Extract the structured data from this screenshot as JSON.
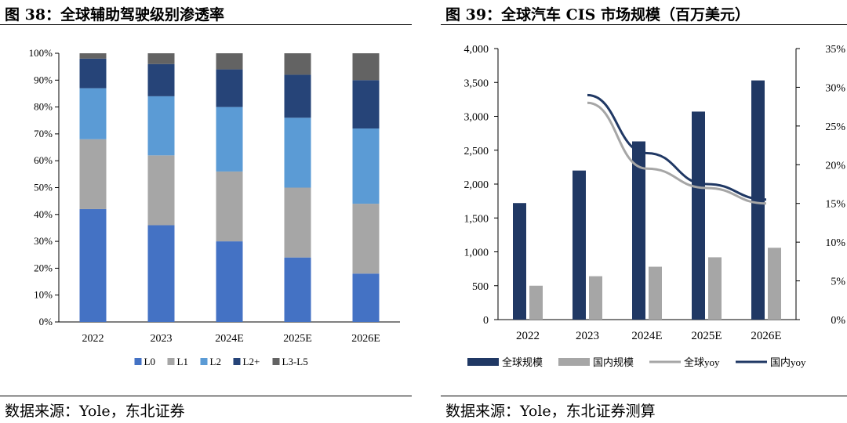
{
  "left": {
    "title": "图 38：全球辅助驾驶级别渗透率",
    "source": "数据来源：Yole，东北证券",
    "chart_data": {
      "type": "bar",
      "stacked": true,
      "categories": [
        "2022",
        "2023",
        "2024E",
        "2025E",
        "2026E"
      ],
      "series": [
        {
          "name": "L0",
          "values": [
            42,
            36,
            30,
            24,
            18
          ],
          "color": "#4472c4"
        },
        {
          "name": "L1",
          "values": [
            26,
            26,
            26,
            26,
            26
          ],
          "color": "#a6a6a6"
        },
        {
          "name": "L2",
          "values": [
            19,
            22,
            24,
            26,
            28
          ],
          "color": "#5b9bd5"
        },
        {
          "name": "L2+",
          "values": [
            11,
            12,
            14,
            16,
            18
          ],
          "color": "#264478"
        },
        {
          "name": "L3-L5",
          "values": [
            2,
            4,
            6,
            8,
            10
          ],
          "color": "#636363"
        }
      ],
      "yticks": [
        "0%",
        "10%",
        "20%",
        "30%",
        "40%",
        "50%",
        "60%",
        "70%",
        "80%",
        "90%",
        "100%"
      ],
      "ylim": [
        0,
        100
      ]
    }
  },
  "right": {
    "title": "图 39：全球汽车 CIS 市场规模（百万美元）",
    "source": "数据来源：Yole，东北证券测算",
    "chart_data": {
      "type": "bar",
      "categories": [
        "2022",
        "2023",
        "2024E",
        "2025E",
        "2026E"
      ],
      "series": [
        {
          "name": "全球规模",
          "kind": "bar",
          "axis": "left",
          "values": [
            1720,
            2200,
            2630,
            3070,
            3530
          ],
          "color": "#203864"
        },
        {
          "name": "国内规模",
          "kind": "bar",
          "axis": "left",
          "values": [
            500,
            640,
            780,
            920,
            1060
          ],
          "color": "#a6a6a6"
        },
        {
          "name": "全球yoy",
          "kind": "line",
          "axis": "right",
          "values": [
            null,
            28.0,
            19.5,
            17.0,
            15.0
          ],
          "color": "#a6a6a6"
        },
        {
          "name": "国内yoy",
          "kind": "line",
          "axis": "right",
          "values": [
            null,
            29.0,
            21.5,
            17.5,
            15.5
          ],
          "color": "#203864"
        }
      ],
      "y_left_ticks": [
        "0",
        "500",
        "1,000",
        "1,500",
        "2,000",
        "2,500",
        "3,000",
        "3,500",
        "4,000"
      ],
      "y_right_ticks": [
        "0%",
        "5%",
        "10%",
        "15%",
        "20%",
        "25%",
        "30%",
        "35%"
      ],
      "ylim_left": [
        0,
        4000
      ],
      "ylim_right": [
        0,
        35
      ]
    }
  }
}
